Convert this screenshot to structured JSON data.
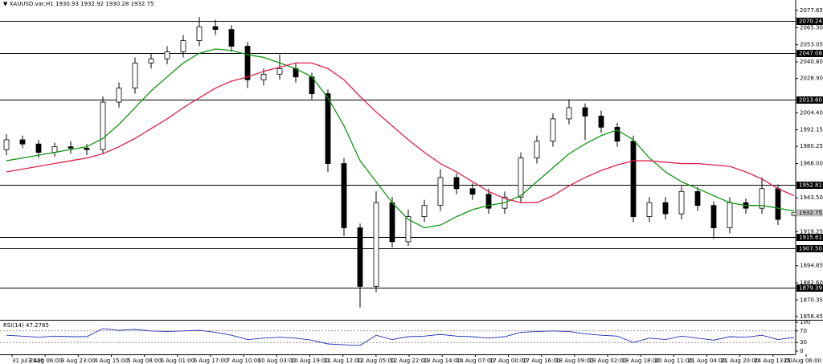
{
  "chart_data": {
    "type": "candlestick",
    "title": "XAUUSD.var,H1",
    "open": [
      1978,
      1985,
      1982,
      1976,
      1980,
      1979,
      1978,
      2012,
      2022,
      2040,
      2043,
      2048,
      2056,
      2066,
      2064,
      2052,
      2028,
      2032,
      2036,
      2030,
      2018,
      1968,
      1922,
      1880,
      1940,
      1912,
      1930,
      1938,
      1958,
      1950,
      1946,
      1936,
      1944,
      1972,
      1984,
      2000,
      2008,
      2002,
      1994,
      1984,
      1930,
      1940,
      1932,
      1948,
      1938,
      1922,
      1940,
      1936,
      1950,
      1930.93
    ],
    "high": [
      1989,
      1988,
      1985,
      1983,
      1984,
      1982,
      2016,
      2026,
      2044,
      2047,
      2052,
      2060,
      2073,
      2071,
      2067,
      2055,
      2036,
      2046,
      2040,
      2033,
      2021,
      1972,
      1925,
      1948,
      1944,
      1935,
      1942,
      1964,
      1961,
      1954,
      1950,
      1948,
      1976,
      1988,
      2004,
      2014,
      2011,
      2006,
      1997,
      1988,
      1944,
      1944,
      1952,
      1951,
      1941,
      1944,
      1943,
      1958,
      1953,
      1932.92
    ],
    "low": [
      1974,
      1979,
      1972,
      1973,
      1975,
      1974,
      1975,
      2008,
      2018,
      2036,
      2039,
      2044,
      2052,
      2060,
      2048,
      2022,
      2024,
      2028,
      2026,
      2014,
      1962,
      1916,
      1865,
      1876,
      1908,
      1909,
      1926,
      1934,
      1946,
      1942,
      1932,
      1932,
      1940,
      1968,
      1980,
      1996,
      1985,
      1990,
      1980,
      1926,
      1926,
      1928,
      1928,
      1934,
      1914,
      1918,
      1932,
      1932,
      1924,
      1930.28
    ],
    "close": [
      1985,
      1982,
      1976,
      1980,
      1979,
      1978,
      2012,
      2022,
      2040,
      2043,
      2048,
      2056,
      2066,
      2064,
      2052,
      2028,
      2032,
      2036,
      2030,
      2018,
      1968,
      1922,
      1880,
      1940,
      1912,
      1930,
      1938,
      1958,
      1950,
      1946,
      1936,
      1944,
      1972,
      1984,
      2000,
      2008,
      2002,
      1994,
      1984,
      1930,
      1940,
      1932,
      1948,
      1938,
      1922,
      1940,
      1936,
      1950,
      1928,
      1932.75
    ],
    "lines": [
      {
        "color": "#129612",
        "values": [
          1970,
          1972,
          1974,
          1976,
          1978,
          1980,
          1986,
          1996,
          2008,
          2020,
          2030,
          2040,
          2047,
          2050,
          2049,
          2046,
          2044,
          2040,
          2036,
          2030,
          2015,
          1995,
          1970,
          1955,
          1940,
          1928,
          1922,
          1924,
          1930,
          1935,
          1938,
          1940,
          1945,
          1955,
          1965,
          1975,
          1982,
          1988,
          1992,
          1985,
          1972,
          1962,
          1955,
          1950,
          1945,
          1940,
          1938,
          1938,
          1936,
          1934
        ]
      },
      {
        "color": "#e0204a",
        "values": [
          1962,
          1964,
          1966,
          1968,
          1970,
          1972,
          1975,
          1980,
          1986,
          1993,
          2000,
          2008,
          2015,
          2022,
          2027,
          2030,
          2034,
          2037,
          2040,
          2040,
          2036,
          2028,
          2016,
          2005,
          1995,
          1985,
          1976,
          1968,
          1962,
          1955,
          1948,
          1943,
          1940,
          1940,
          1945,
          1952,
          1958,
          1963,
          1967,
          1970,
          1970,
          1969,
          1968,
          1968,
          1967,
          1966,
          1962,
          1957,
          1950,
          1945
        ]
      }
    ],
    "levels": [
      2070.24,
      2047.08,
      {
        "value": 2013.6,
        "label": "2013.60"
      },
      1952.81,
      1915.61,
      {
        "value": 1907.5,
        "label": "1907.50"
      },
      1879.39
    ],
    "ylim": [
      1856.7,
      2085.1
    ],
    "yticks": [
      2077.65,
      {
        "value": 2065.3,
        "label": "2065.30"
      },
      2053.05,
      {
        "value": 2040.8,
        "label": "2040.80"
      },
      {
        "value": 2028.9,
        "label": "2028.90"
      },
      {
        "value": 2004.4,
        "label": "2004.40"
      },
      1992.15,
      1980.25,
      {
        "value": 1968,
        "label": "1968.00"
      },
      {
        "value": 1943.5,
        "label": "1943.50"
      },
      1919.25,
      1894.85,
      {
        "value": 1882.6,
        "label": "1882.60"
      },
      1870.35,
      1858.45
    ],
    "xlabels": [
      "31 Jul 2020",
      "3 Aug 06:00",
      "3 Aug 23:00",
      "4 Aug 15:00",
      "5 Aug 08:00",
      "6 Aug 01:00",
      "6 Aug 17:00",
      "7 Aug 10:00",
      "10 Aug 03:00",
      "10 Aug 19:00",
      "11 Aug 12:00",
      "12 Aug 05:00",
      "12 Aug 22:00",
      "13 Aug 14:00",
      "14 Aug 07:00",
      "17 Aug 00:00",
      "17 Aug 16:00",
      "18 Aug 09:00",
      "19 Aug 02:00",
      "19 Aug 18:00",
      "20 Aug 11:00",
      "21 Aug 04:00",
      "21 Aug 20:00",
      "24 Aug 13:00",
      "25 Aug 06:00"
    ],
    "rsi": {
      "label": "RSI(14)",
      "color": "#2030b0",
      "ylim": [
        0,
        100
      ],
      "yticks": [
        100,
        70,
        30,
        0
      ],
      "levels": [
        70,
        30
      ],
      "values": [
        55,
        52,
        48,
        52,
        50,
        50,
        78,
        72,
        75,
        70,
        68,
        70,
        72,
        65,
        55,
        40,
        45,
        48,
        45,
        38,
        25,
        22,
        20,
        55,
        40,
        50,
        52,
        58,
        52,
        50,
        45,
        50,
        65,
        68,
        70,
        68,
        60,
        55,
        52,
        30,
        45,
        40,
        52,
        45,
        38,
        50,
        48,
        55,
        40,
        47.2765
      ]
    }
  }
}
